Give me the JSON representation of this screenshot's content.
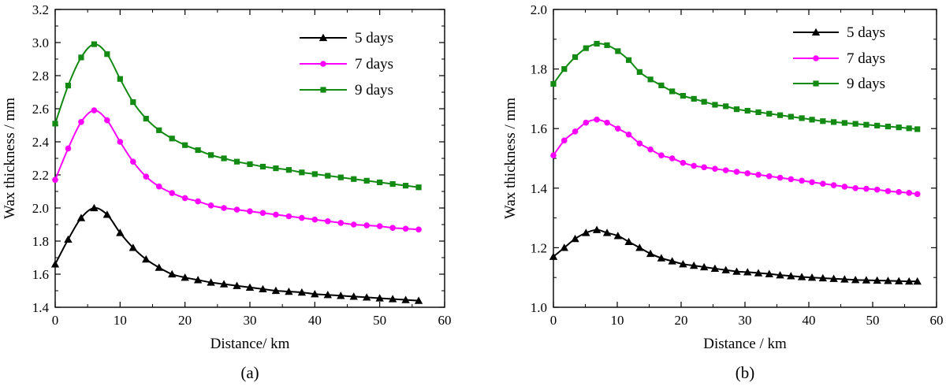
{
  "chart_data": [
    {
      "type": "line",
      "panel_label": "(a)",
      "xlabel": "Distance/ km",
      "ylabel": "Wax thickness / mm",
      "xlim": [
        0,
        60
      ],
      "ylim": [
        1.4,
        3.2
      ],
      "xticks": [
        0,
        10,
        20,
        30,
        40,
        50,
        60
      ],
      "xtick_labels": [
        "0",
        "10",
        "20",
        "30",
        "40",
        "50",
        "60"
      ],
      "yticks": [
        1.4,
        1.6,
        1.8,
        2.0,
        2.2,
        2.4,
        2.6,
        2.8,
        3.0,
        3.2
      ],
      "ytick_labels": [
        "1.4",
        "1.6",
        "1.8",
        "2.0",
        "2.2",
        "2.4",
        "2.6",
        "2.8",
        "3.0",
        "3.2"
      ],
      "grid": false,
      "legend_position": "top-right",
      "x": [
        0,
        2,
        4,
        6,
        8,
        10,
        12,
        14,
        16,
        18,
        20,
        22,
        24,
        26,
        28,
        30,
        32,
        34,
        36,
        38,
        40,
        42,
        44,
        46,
        48,
        50,
        52,
        54,
        56
      ],
      "series": [
        {
          "name": "5 days",
          "color": "#000000",
          "marker": "triangle",
          "values": [
            1.66,
            1.81,
            1.94,
            2.0,
            1.96,
            1.85,
            1.76,
            1.69,
            1.64,
            1.6,
            1.58,
            1.565,
            1.55,
            1.54,
            1.53,
            1.52,
            1.51,
            1.5,
            1.495,
            1.49,
            1.48,
            1.475,
            1.47,
            1.465,
            1.46,
            1.455,
            1.45,
            1.445,
            1.44
          ]
        },
        {
          "name": "7 days",
          "color": "#ff00ff",
          "marker": "circle",
          "values": [
            2.17,
            2.36,
            2.52,
            2.59,
            2.53,
            2.4,
            2.28,
            2.19,
            2.13,
            2.09,
            2.06,
            2.04,
            2.015,
            2.0,
            1.99,
            1.98,
            1.97,
            1.96,
            1.95,
            1.94,
            1.93,
            1.92,
            1.91,
            1.9,
            1.895,
            1.89,
            1.88,
            1.875,
            1.87
          ]
        },
        {
          "name": "9 days",
          "color": "#138a13",
          "marker": "square",
          "values": [
            2.51,
            2.74,
            2.91,
            2.99,
            2.93,
            2.78,
            2.64,
            2.54,
            2.47,
            2.42,
            2.38,
            2.35,
            2.32,
            2.3,
            2.28,
            2.265,
            2.25,
            2.24,
            2.23,
            2.215,
            2.205,
            2.195,
            2.185,
            2.175,
            2.165,
            2.155,
            2.145,
            2.135,
            2.125
          ]
        }
      ]
    },
    {
      "type": "line",
      "panel_label": "(b)",
      "xlabel": "Distance / km",
      "ylabel": "Wax thickness / mm",
      "xlim": [
        0,
        60
      ],
      "ylim": [
        1.0,
        2.0
      ],
      "xticks": [
        0,
        10,
        20,
        30,
        40,
        50,
        60
      ],
      "xtick_labels": [
        "0",
        "10",
        "20",
        "30",
        "40",
        "50",
        "60"
      ],
      "yticks": [
        1.0,
        1.2,
        1.4,
        1.6,
        1.8,
        2.0
      ],
      "ytick_labels": [
        "1.0",
        "1.2",
        "1.4",
        "1.6",
        "1.8",
        "2.0"
      ],
      "grid": false,
      "legend_position": "top-right",
      "x": [
        0,
        1.7,
        3.4,
        5.1,
        6.8,
        8.4,
        10.1,
        11.8,
        13.5,
        15.2,
        16.9,
        18.6,
        20.3,
        22.0,
        23.6,
        25.3,
        27.0,
        28.7,
        30.4,
        32.1,
        33.8,
        35.5,
        37.2,
        38.9,
        40.5,
        42.2,
        43.9,
        45.6,
        47.3,
        49.0,
        50.7,
        52.4,
        54.1,
        55.7,
        57.0
      ],
      "series": [
        {
          "name": "5 days",
          "color": "#000000",
          "marker": "triangle",
          "values": [
            1.17,
            1.2,
            1.23,
            1.25,
            1.26,
            1.25,
            1.24,
            1.22,
            1.2,
            1.18,
            1.165,
            1.155,
            1.145,
            1.14,
            1.135,
            1.13,
            1.125,
            1.12,
            1.118,
            1.115,
            1.112,
            1.108,
            1.105,
            1.102,
            1.1,
            1.098,
            1.096,
            1.094,
            1.092,
            1.091,
            1.09,
            1.089,
            1.088,
            1.087,
            1.087
          ]
        },
        {
          "name": "7 days",
          "color": "#ff00ff",
          "marker": "circle",
          "values": [
            1.51,
            1.56,
            1.59,
            1.62,
            1.63,
            1.62,
            1.6,
            1.58,
            1.55,
            1.53,
            1.51,
            1.5,
            1.485,
            1.475,
            1.47,
            1.465,
            1.46,
            1.455,
            1.45,
            1.445,
            1.44,
            1.435,
            1.43,
            1.425,
            1.42,
            1.415,
            1.41,
            1.405,
            1.4,
            1.398,
            1.395,
            1.39,
            1.387,
            1.384,
            1.38
          ]
        },
        {
          "name": "9 days",
          "color": "#138a13",
          "marker": "square",
          "values": [
            1.75,
            1.8,
            1.84,
            1.87,
            1.885,
            1.88,
            1.86,
            1.83,
            1.79,
            1.765,
            1.745,
            1.725,
            1.71,
            1.7,
            1.69,
            1.68,
            1.675,
            1.665,
            1.66,
            1.655,
            1.65,
            1.645,
            1.64,
            1.635,
            1.63,
            1.625,
            1.622,
            1.619,
            1.616,
            1.613,
            1.61,
            1.607,
            1.604,
            1.601,
            1.598
          ]
        }
      ]
    }
  ]
}
